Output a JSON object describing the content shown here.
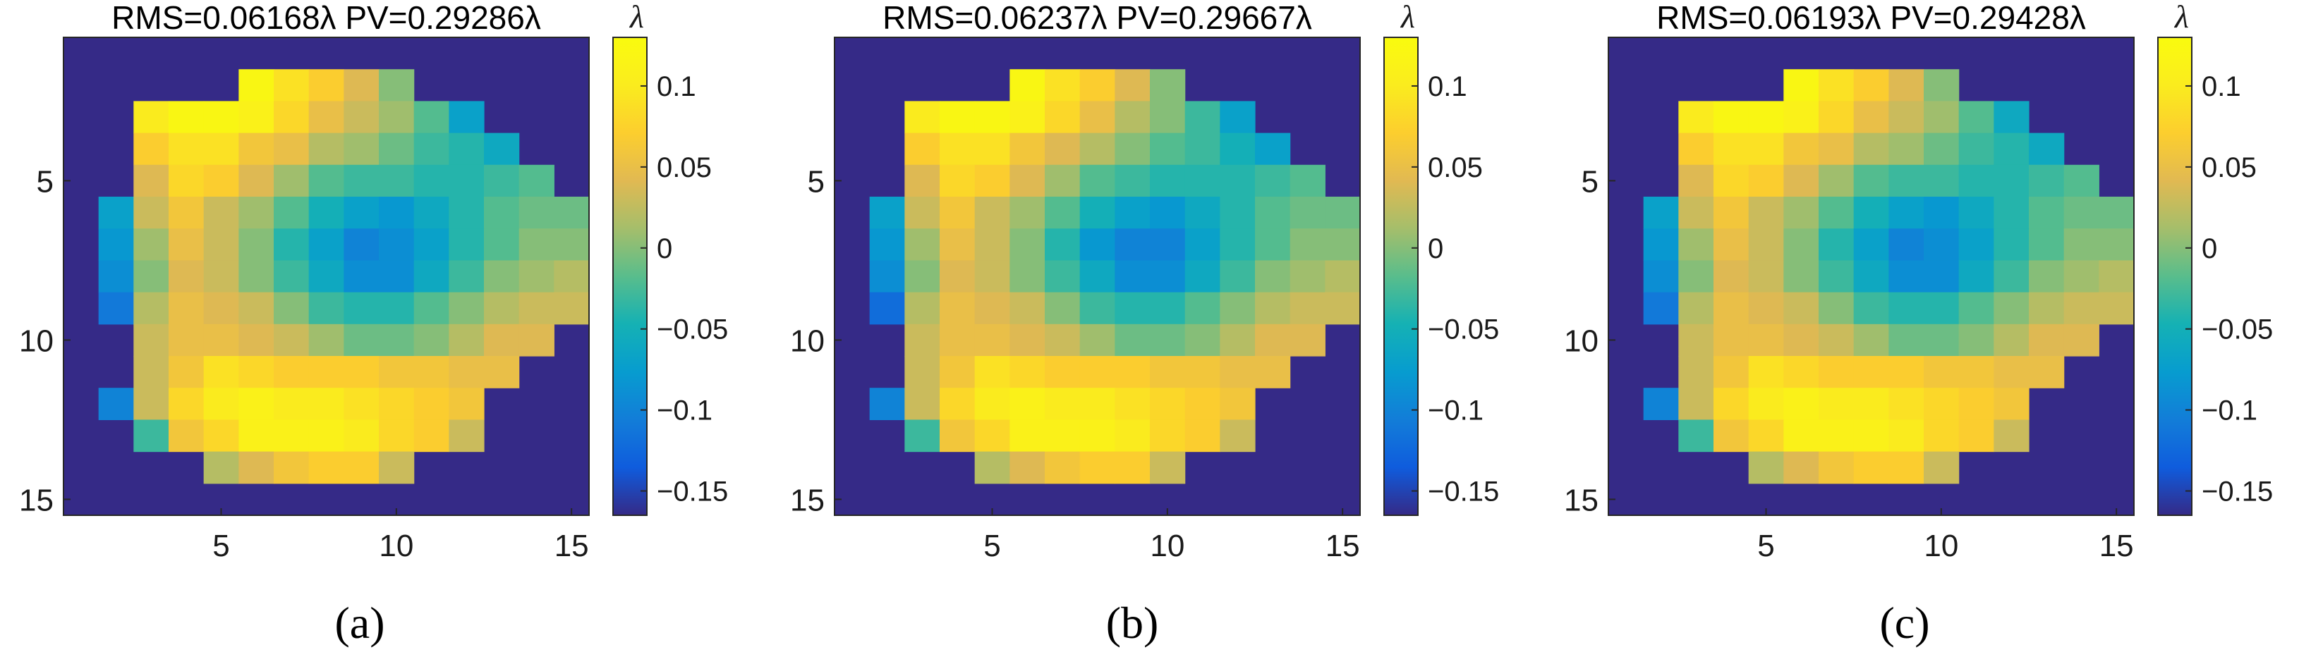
{
  "chart_data": [
    {
      "type": "heatmap",
      "panel_label": "(a)",
      "title": "RMS=0.06168λ PV=0.29286λ",
      "colorbar_unit": "λ",
      "x_ticks": [
        5,
        10,
        15
      ],
      "y_ticks": [
        5,
        10,
        15
      ],
      "xlim": [
        0.5,
        15.5
      ],
      "ylim": [
        0.5,
        15.5
      ],
      "colorbar_ticks": [
        0.1,
        0.05,
        0,
        -0.05,
        -0.1,
        -0.15
      ],
      "colorbar_tick_labels": [
        "0.1",
        "0.05",
        "0",
        "−0.05",
        "−0.1",
        "−0.15"
      ],
      "colorbar_range": [
        -0.165,
        0.13
      ],
      "colormap": "parula",
      "grid": "15x15",
      "background_value": -0.165,
      "values": [
        [
          null,
          null,
          null,
          null,
          null,
          null,
          null,
          null,
          null,
          null,
          null,
          null,
          null,
          null,
          null
        ],
        [
          null,
          null,
          null,
          null,
          null,
          0.12,
          0.09,
          0.07,
          0.04,
          0.0,
          null,
          null,
          null,
          null,
          null
        ],
        [
          null,
          null,
          0.1,
          0.12,
          0.12,
          0.11,
          0.08,
          0.05,
          0.03,
          0.01,
          -0.02,
          -0.07,
          null,
          null,
          null
        ],
        [
          null,
          null,
          0.07,
          0.09,
          0.09,
          0.06,
          0.05,
          0.02,
          0.01,
          -0.01,
          -0.03,
          -0.04,
          -0.06,
          null,
          null
        ],
        [
          null,
          null,
          0.04,
          0.08,
          0.07,
          0.04,
          0.01,
          -0.02,
          -0.03,
          -0.03,
          -0.04,
          -0.04,
          -0.03,
          -0.02,
          null
        ],
        [
          null,
          -0.07,
          0.03,
          0.06,
          0.03,
          0.01,
          -0.02,
          -0.05,
          -0.07,
          -0.08,
          -0.06,
          -0.04,
          -0.02,
          -0.01,
          -0.01
        ],
        [
          null,
          -0.08,
          0.01,
          0.05,
          0.03,
          0.0,
          -0.04,
          -0.07,
          -0.1,
          -0.09,
          -0.07,
          -0.04,
          -0.02,
          0.0,
          0.0
        ],
        [
          null,
          -0.09,
          0.0,
          0.04,
          0.03,
          0.0,
          -0.03,
          -0.06,
          -0.09,
          -0.09,
          -0.06,
          -0.03,
          0.0,
          0.01,
          0.02
        ],
        [
          null,
          -0.11,
          0.02,
          0.05,
          0.04,
          0.03,
          0.0,
          -0.03,
          -0.04,
          -0.04,
          -0.02,
          0.0,
          0.02,
          0.03,
          0.03
        ],
        [
          null,
          null,
          0.03,
          0.05,
          0.05,
          0.04,
          0.03,
          0.01,
          -0.01,
          -0.01,
          0.0,
          0.02,
          0.04,
          0.04,
          null
        ],
        [
          null,
          null,
          0.03,
          0.06,
          0.09,
          0.08,
          0.07,
          0.07,
          0.07,
          0.06,
          0.06,
          0.05,
          0.05,
          null,
          null
        ],
        [
          null,
          -0.1,
          0.03,
          0.08,
          0.1,
          0.11,
          0.1,
          0.1,
          0.09,
          0.08,
          0.07,
          0.06,
          null,
          null,
          null
        ],
        [
          null,
          null,
          -0.03,
          0.06,
          0.08,
          0.11,
          0.11,
          0.11,
          0.1,
          0.08,
          0.07,
          0.03,
          null,
          null,
          null
        ],
        [
          null,
          null,
          null,
          null,
          0.02,
          0.04,
          0.06,
          0.07,
          0.07,
          0.03,
          null,
          null,
          null,
          null,
          null
        ],
        [
          null,
          null,
          null,
          null,
          null,
          null,
          null,
          null,
          null,
          null,
          null,
          null,
          null,
          null,
          null
        ]
      ]
    },
    {
      "type": "heatmap",
      "panel_label": "(b)",
      "title": "RMS=0.06237λ PV=0.29667λ",
      "colorbar_unit": "λ",
      "x_ticks": [
        5,
        10,
        15
      ],
      "y_ticks": [
        5,
        10,
        15
      ],
      "xlim": [
        0.5,
        15.5
      ],
      "ylim": [
        0.5,
        15.5
      ],
      "colorbar_ticks": [
        0.1,
        0.05,
        0,
        -0.05,
        -0.1,
        -0.15
      ],
      "colorbar_tick_labels": [
        "0.1",
        "0.05",
        "0",
        "−0.05",
        "−0.1",
        "−0.15"
      ],
      "colorbar_range": [
        -0.165,
        0.13
      ],
      "colormap": "parula",
      "grid": "15x15",
      "background_value": -0.165,
      "values": [
        [
          null,
          null,
          null,
          null,
          null,
          null,
          null,
          null,
          null,
          null,
          null,
          null,
          null,
          null,
          null
        ],
        [
          null,
          null,
          null,
          null,
          null,
          0.12,
          0.09,
          0.07,
          0.04,
          0.0,
          null,
          null,
          null,
          null,
          null
        ],
        [
          null,
          null,
          0.1,
          0.12,
          0.12,
          0.11,
          0.08,
          0.05,
          0.02,
          0.0,
          -0.03,
          -0.07,
          null,
          null,
          null
        ],
        [
          null,
          null,
          0.07,
          0.09,
          0.09,
          0.06,
          0.04,
          0.02,
          0.0,
          -0.02,
          -0.03,
          -0.05,
          -0.07,
          null,
          null
        ],
        [
          null,
          null,
          0.04,
          0.08,
          0.07,
          0.04,
          0.01,
          -0.02,
          -0.03,
          -0.04,
          -0.04,
          -0.04,
          -0.03,
          -0.02,
          null
        ],
        [
          null,
          -0.07,
          0.03,
          0.06,
          0.03,
          0.01,
          -0.02,
          -0.05,
          -0.07,
          -0.08,
          -0.06,
          -0.04,
          -0.02,
          -0.01,
          -0.01
        ],
        [
          null,
          -0.08,
          0.01,
          0.05,
          0.03,
          0.0,
          -0.04,
          -0.08,
          -0.1,
          -0.1,
          -0.07,
          -0.04,
          -0.02,
          0.0,
          0.0
        ],
        [
          null,
          -0.09,
          0.0,
          0.04,
          0.03,
          0.0,
          -0.03,
          -0.06,
          -0.09,
          -0.09,
          -0.06,
          -0.03,
          0.0,
          0.01,
          0.02
        ],
        [
          null,
          -0.12,
          0.02,
          0.05,
          0.04,
          0.03,
          0.0,
          -0.03,
          -0.04,
          -0.04,
          -0.02,
          0.0,
          0.02,
          0.03,
          0.03
        ],
        [
          null,
          null,
          0.03,
          0.05,
          0.05,
          0.04,
          0.03,
          0.01,
          -0.01,
          -0.01,
          0.0,
          0.02,
          0.04,
          0.04,
          null
        ],
        [
          null,
          null,
          0.03,
          0.06,
          0.09,
          0.08,
          0.07,
          0.07,
          0.07,
          0.06,
          0.06,
          0.05,
          0.05,
          null,
          null
        ],
        [
          null,
          -0.1,
          0.03,
          0.08,
          0.1,
          0.11,
          0.1,
          0.1,
          0.09,
          0.08,
          0.07,
          0.06,
          null,
          null,
          null
        ],
        [
          null,
          null,
          -0.03,
          0.06,
          0.08,
          0.11,
          0.11,
          0.11,
          0.1,
          0.08,
          0.07,
          0.03,
          null,
          null,
          null
        ],
        [
          null,
          null,
          null,
          null,
          0.02,
          0.04,
          0.06,
          0.07,
          0.07,
          0.03,
          null,
          null,
          null,
          null,
          null
        ],
        [
          null,
          null,
          null,
          null,
          null,
          null,
          null,
          null,
          null,
          null,
          null,
          null,
          null,
          null,
          null
        ]
      ]
    },
    {
      "type": "heatmap",
      "panel_label": "(c)",
      "title": "RMS=0.06193λ PV=0.29428λ",
      "colorbar_unit": "λ",
      "x_ticks": [
        5,
        10,
        15
      ],
      "y_ticks": [
        5,
        10,
        15
      ],
      "xlim": [
        0.5,
        15.5
      ],
      "ylim": [
        0.5,
        15.5
      ],
      "colorbar_ticks": [
        0.1,
        0.05,
        0,
        -0.05,
        -0.1,
        -0.15
      ],
      "colorbar_tick_labels": [
        "0.1",
        "0.05",
        "0",
        "−0.05",
        "−0.1",
        "−0.15"
      ],
      "colorbar_range": [
        -0.165,
        0.13
      ],
      "colormap": "parula",
      "grid": "15x15",
      "background_value": -0.165,
      "values": [
        [
          null,
          null,
          null,
          null,
          null,
          null,
          null,
          null,
          null,
          null,
          null,
          null,
          null,
          null,
          null
        ],
        [
          null,
          null,
          null,
          null,
          null,
          0.12,
          0.09,
          0.07,
          0.04,
          0.0,
          null,
          null,
          null,
          null,
          null
        ],
        [
          null,
          null,
          0.1,
          0.12,
          0.12,
          0.11,
          0.08,
          0.05,
          0.03,
          0.01,
          -0.02,
          -0.06,
          null,
          null,
          null
        ],
        [
          null,
          null,
          0.07,
          0.09,
          0.09,
          0.06,
          0.05,
          0.02,
          0.01,
          -0.01,
          -0.03,
          -0.04,
          -0.06,
          null,
          null
        ],
        [
          null,
          null,
          0.04,
          0.08,
          0.07,
          0.04,
          0.01,
          -0.02,
          -0.03,
          -0.03,
          -0.04,
          -0.04,
          -0.03,
          -0.02,
          null
        ],
        [
          null,
          -0.07,
          0.03,
          0.06,
          0.03,
          0.01,
          -0.02,
          -0.05,
          -0.07,
          -0.08,
          -0.06,
          -0.04,
          -0.02,
          -0.01,
          -0.01
        ],
        [
          null,
          -0.08,
          0.01,
          0.05,
          0.03,
          0.0,
          -0.04,
          -0.07,
          -0.1,
          -0.09,
          -0.07,
          -0.04,
          -0.02,
          0.0,
          0.0
        ],
        [
          null,
          -0.09,
          0.0,
          0.04,
          0.03,
          0.0,
          -0.03,
          -0.06,
          -0.09,
          -0.09,
          -0.06,
          -0.03,
          0.0,
          0.01,
          0.02
        ],
        [
          null,
          -0.11,
          0.02,
          0.05,
          0.04,
          0.03,
          0.0,
          -0.03,
          -0.04,
          -0.04,
          -0.02,
          0.0,
          0.02,
          0.03,
          0.03
        ],
        [
          null,
          null,
          0.03,
          0.05,
          0.05,
          0.04,
          0.03,
          0.01,
          -0.01,
          -0.01,
          0.0,
          0.02,
          0.04,
          0.04,
          null
        ],
        [
          null,
          null,
          0.03,
          0.06,
          0.09,
          0.08,
          0.07,
          0.07,
          0.07,
          0.06,
          0.06,
          0.05,
          0.05,
          null,
          null
        ],
        [
          null,
          -0.1,
          0.03,
          0.08,
          0.1,
          0.11,
          0.1,
          0.1,
          0.09,
          0.08,
          0.07,
          0.06,
          null,
          null,
          null
        ],
        [
          null,
          null,
          -0.03,
          0.06,
          0.08,
          0.11,
          0.11,
          0.11,
          0.1,
          0.08,
          0.07,
          0.03,
          null,
          null,
          null
        ],
        [
          null,
          null,
          null,
          null,
          0.02,
          0.04,
          0.06,
          0.07,
          0.07,
          0.03,
          null,
          null,
          null,
          null,
          null
        ],
        [
          null,
          null,
          null,
          null,
          null,
          null,
          null,
          null,
          null,
          null,
          null,
          null,
          null,
          null,
          null
        ]
      ]
    }
  ]
}
